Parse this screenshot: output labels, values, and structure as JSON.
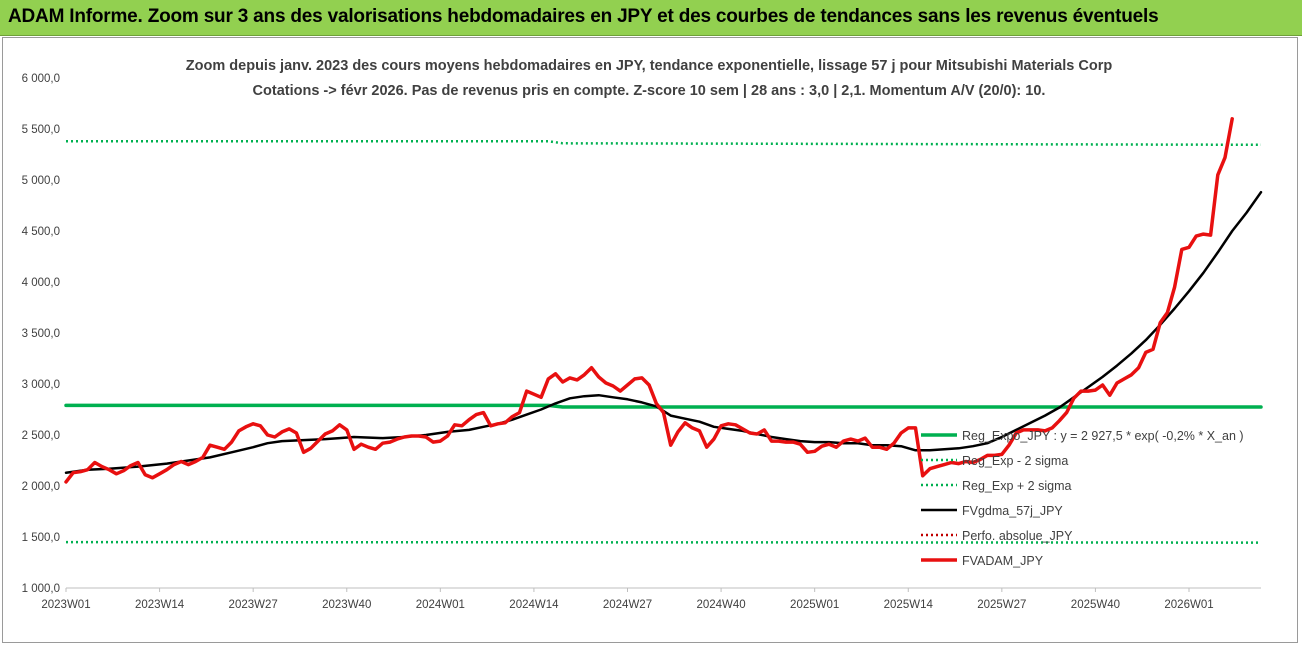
{
  "header": {
    "title": "ADAM Informe. Zoom sur 3 ans des valorisations hebdomadaires en JPY et des courbes de tendances sans les revenus éventuels"
  },
  "chart_data": {
    "type": "line",
    "title": "Zoom depuis janv. 2023 des cours moyens hebdomadaires en JPY, tendance exponentielle, lissage 57 j pour Mitsubishi Materials Corp",
    "subtitle": "Cotations -> févr 2026. Pas de revenus pris en compte. Z-score 10 sem | 28 ans : 3,0 | 2,1. Momentum A/V (20/0): 10.",
    "xlabel": "",
    "ylabel": "",
    "ylim": [
      1000,
      6000
    ],
    "yticks": [
      "1 000,0",
      "1 500,0",
      "2 000,0",
      "2 500,0",
      "3 000,0",
      "3 500,0",
      "4 000,0",
      "4 500,0",
      "5 000,0",
      "5 500,0",
      "6 000,0"
    ],
    "xticks": [
      "2023W01",
      "2023W14",
      "2023W27",
      "2023W40",
      "2024W01",
      "2024W14",
      "2024W27",
      "2024W40",
      "2025W01",
      "2025W14",
      "2025W27",
      "2025W40",
      "2026W01"
    ],
    "grid": false,
    "legend_position": "right",
    "series": [
      {
        "name": "Reg_Expo_JPY : y = 2 927,5 * exp( -0,2% *  X_an )",
        "color": "#00b050",
        "style": "solid-thick",
        "points": [
          [
            0,
            2790
          ],
          [
            67,
            2790
          ],
          [
            69,
            2775
          ],
          [
            166,
            2775
          ]
        ]
      },
      {
        "name": "Reg_Exp - 2 sigma",
        "color": "#00b050",
        "style": "dotted",
        "points": [
          [
            0,
            1450
          ],
          [
            166,
            1445
          ]
        ]
      },
      {
        "name": "Reg_Exp + 2 sigma",
        "color": "#00b050",
        "style": "dotted",
        "points": [
          [
            0,
            5380
          ],
          [
            67,
            5380
          ],
          [
            69,
            5360
          ],
          [
            166,
            5345
          ]
        ]
      },
      {
        "name": "FVgdma_57j_JPY",
        "color": "#000000",
        "style": "solid",
        "points": [
          [
            0,
            2130
          ],
          [
            3,
            2160
          ],
          [
            6,
            2170
          ],
          [
            10,
            2190
          ],
          [
            14,
            2220
          ],
          [
            17,
            2250
          ],
          [
            20,
            2280
          ],
          [
            23,
            2330
          ],
          [
            26,
            2380
          ],
          [
            28,
            2420
          ],
          [
            30,
            2440
          ],
          [
            33,
            2450
          ],
          [
            36,
            2460
          ],
          [
            38,
            2470
          ],
          [
            40,
            2480
          ],
          [
            44,
            2470
          ],
          [
            47,
            2480
          ],
          [
            50,
            2500
          ],
          [
            53,
            2530
          ],
          [
            56,
            2550
          ],
          [
            58,
            2580
          ],
          [
            60,
            2610
          ],
          [
            62,
            2650
          ],
          [
            64,
            2700
          ],
          [
            66,
            2750
          ],
          [
            68,
            2810
          ],
          [
            70,
            2860
          ],
          [
            72,
            2880
          ],
          [
            74,
            2890
          ],
          [
            76,
            2870
          ],
          [
            78,
            2850
          ],
          [
            80,
            2820
          ],
          [
            82,
            2780
          ],
          [
            84,
            2690
          ],
          [
            86,
            2660
          ],
          [
            88,
            2630
          ],
          [
            90,
            2580
          ],
          [
            92,
            2560
          ],
          [
            94,
            2540
          ],
          [
            96,
            2510
          ],
          [
            98,
            2480
          ],
          [
            100,
            2460
          ],
          [
            102,
            2440
          ],
          [
            104,
            2430
          ],
          [
            106,
            2430
          ],
          [
            108,
            2420
          ],
          [
            110,
            2420
          ],
          [
            112,
            2400
          ],
          [
            114,
            2400
          ],
          [
            116,
            2390
          ],
          [
            118,
            2350
          ],
          [
            120,
            2350
          ],
          [
            122,
            2360
          ],
          [
            124,
            2370
          ],
          [
            126,
            2390
          ],
          [
            128,
            2420
          ],
          [
            130,
            2480
          ],
          [
            132,
            2550
          ],
          [
            134,
            2620
          ],
          [
            136,
            2690
          ],
          [
            138,
            2770
          ],
          [
            140,
            2870
          ],
          [
            142,
            2970
          ],
          [
            144,
            3070
          ],
          [
            146,
            3180
          ],
          [
            148,
            3300
          ],
          [
            150,
            3430
          ],
          [
            152,
            3580
          ],
          [
            154,
            3740
          ],
          [
            156,
            3910
          ],
          [
            158,
            4090
          ],
          [
            160,
            4290
          ],
          [
            162,
            4500
          ],
          [
            164,
            4680
          ],
          [
            166,
            4880
          ]
        ]
      },
      {
        "name": "Perfo. absolue_JPY",
        "color": "#c00000",
        "style": "dotted",
        "points": []
      },
      {
        "name": "FVADAM_JPY",
        "color": "#e81010",
        "style": "solid-thick",
        "points": [
          [
            0,
            2040
          ],
          [
            1,
            2130
          ],
          [
            2,
            2140
          ],
          [
            3,
            2160
          ],
          [
            4,
            2230
          ],
          [
            5,
            2190
          ],
          [
            6,
            2160
          ],
          [
            7,
            2120
          ],
          [
            8,
            2150
          ],
          [
            9,
            2200
          ],
          [
            10,
            2230
          ],
          [
            11,
            2110
          ],
          [
            12,
            2080
          ],
          [
            13,
            2120
          ],
          [
            14,
            2160
          ],
          [
            15,
            2210
          ],
          [
            16,
            2240
          ],
          [
            17,
            2210
          ],
          [
            18,
            2240
          ],
          [
            19,
            2280
          ],
          [
            20,
            2400
          ],
          [
            21,
            2380
          ],
          [
            22,
            2360
          ],
          [
            23,
            2430
          ],
          [
            24,
            2540
          ],
          [
            25,
            2580
          ],
          [
            26,
            2610
          ],
          [
            27,
            2590
          ],
          [
            28,
            2500
          ],
          [
            29,
            2480
          ],
          [
            30,
            2530
          ],
          [
            31,
            2560
          ],
          [
            32,
            2520
          ],
          [
            33,
            2330
          ],
          [
            34,
            2370
          ],
          [
            35,
            2440
          ],
          [
            36,
            2510
          ],
          [
            37,
            2540
          ],
          [
            38,
            2600
          ],
          [
            39,
            2550
          ],
          [
            40,
            2360
          ],
          [
            41,
            2410
          ],
          [
            42,
            2380
          ],
          [
            43,
            2360
          ],
          [
            44,
            2420
          ],
          [
            45,
            2430
          ],
          [
            46,
            2460
          ],
          [
            47,
            2480
          ],
          [
            48,
            2490
          ],
          [
            49,
            2490
          ],
          [
            50,
            2480
          ],
          [
            51,
            2430
          ],
          [
            52,
            2440
          ],
          [
            53,
            2490
          ],
          [
            54,
            2600
          ],
          [
            55,
            2590
          ],
          [
            56,
            2650
          ],
          [
            57,
            2700
          ],
          [
            58,
            2720
          ],
          [
            59,
            2590
          ],
          [
            60,
            2610
          ],
          [
            61,
            2620
          ],
          [
            62,
            2680
          ],
          [
            63,
            2720
          ],
          [
            64,
            2930
          ],
          [
            65,
            2900
          ],
          [
            66,
            2870
          ],
          [
            67,
            3050
          ],
          [
            68,
            3100
          ],
          [
            69,
            3020
          ],
          [
            70,
            3060
          ],
          [
            71,
            3040
          ],
          [
            72,
            3090
          ],
          [
            73,
            3160
          ],
          [
            74,
            3070
          ],
          [
            75,
            3010
          ],
          [
            76,
            2980
          ],
          [
            77,
            2930
          ],
          [
            78,
            2990
          ],
          [
            79,
            3050
          ],
          [
            80,
            3060
          ],
          [
            81,
            2990
          ],
          [
            82,
            2810
          ],
          [
            83,
            2720
          ],
          [
            84,
            2400
          ],
          [
            85,
            2530
          ],
          [
            86,
            2620
          ],
          [
            87,
            2570
          ],
          [
            88,
            2540
          ],
          [
            89,
            2380
          ],
          [
            90,
            2460
          ],
          [
            91,
            2590
          ],
          [
            92,
            2610
          ],
          [
            93,
            2600
          ],
          [
            94,
            2560
          ],
          [
            95,
            2520
          ],
          [
            96,
            2510
          ],
          [
            97,
            2550
          ],
          [
            98,
            2440
          ],
          [
            99,
            2440
          ],
          [
            100,
            2430
          ],
          [
            101,
            2430
          ],
          [
            102,
            2410
          ],
          [
            103,
            2330
          ],
          [
            104,
            2340
          ],
          [
            105,
            2390
          ],
          [
            106,
            2410
          ],
          [
            107,
            2380
          ],
          [
            108,
            2440
          ],
          [
            109,
            2460
          ],
          [
            110,
            2440
          ],
          [
            111,
            2470
          ],
          [
            112,
            2380
          ],
          [
            113,
            2380
          ],
          [
            114,
            2360
          ],
          [
            115,
            2420
          ],
          [
            116,
            2520
          ],
          [
            117,
            2570
          ],
          [
            118,
            2570
          ],
          [
            119,
            2100
          ],
          [
            120,
            2170
          ],
          [
            121,
            2190
          ],
          [
            122,
            2210
          ],
          [
            123,
            2230
          ],
          [
            124,
            2220
          ],
          [
            125,
            2240
          ],
          [
            126,
            2230
          ],
          [
            127,
            2260
          ],
          [
            128,
            2300
          ],
          [
            129,
            2300
          ],
          [
            130,
            2310
          ],
          [
            131,
            2400
          ],
          [
            132,
            2520
          ],
          [
            133,
            2550
          ],
          [
            134,
            2550
          ],
          [
            135,
            2550
          ],
          [
            136,
            2540
          ],
          [
            137,
            2570
          ],
          [
            138,
            2640
          ],
          [
            139,
            2720
          ],
          [
            140,
            2860
          ],
          [
            141,
            2930
          ],
          [
            142,
            2930
          ],
          [
            143,
            2940
          ],
          [
            144,
            2990
          ],
          [
            145,
            2890
          ],
          [
            146,
            3010
          ],
          [
            147,
            3050
          ],
          [
            148,
            3090
          ],
          [
            149,
            3160
          ],
          [
            150,
            3310
          ],
          [
            151,
            3340
          ],
          [
            152,
            3600
          ],
          [
            153,
            3700
          ],
          [
            154,
            3950
          ],
          [
            155,
            4320
          ],
          [
            156,
            4340
          ],
          [
            157,
            4450
          ],
          [
            158,
            4470
          ],
          [
            159,
            4460
          ],
          [
            160,
            5050
          ],
          [
            161,
            5220
          ],
          [
            162,
            5600
          ]
        ]
      }
    ]
  }
}
